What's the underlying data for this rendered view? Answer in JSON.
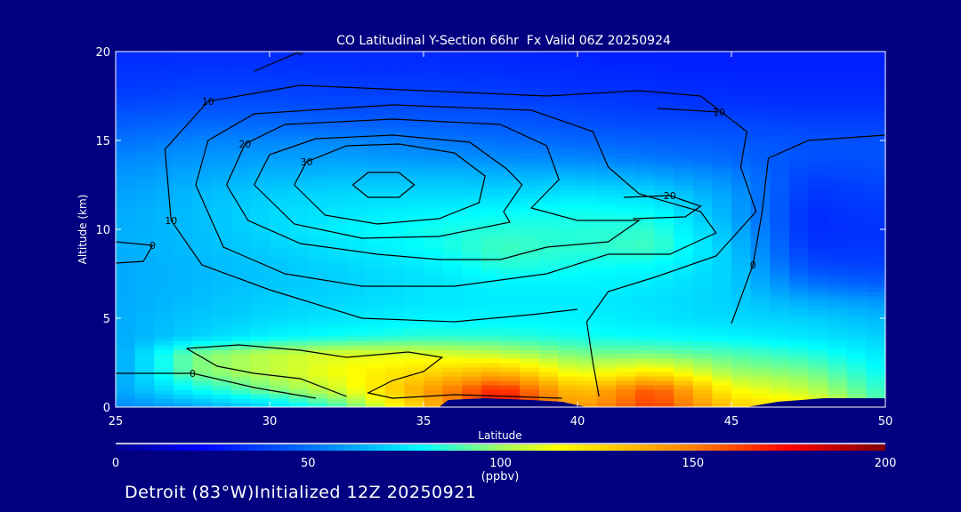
{
  "chart_data": {
    "type": "heatmap",
    "title": "CO Latitudinal Y-Section 66hr  Fx Valid 06Z 20250924",
    "xlabel": "Latitude",
    "ylabel": "Altitude (km)",
    "xlim": [
      25,
      50
    ],
    "ylim": [
      0,
      20
    ],
    "xticks": [
      "25",
      "30",
      "35",
      "40",
      "45",
      "50"
    ],
    "yticks": [
      "0",
      "5",
      "10",
      "15",
      "20"
    ],
    "colorbar": {
      "min": 0,
      "max": 200,
      "ticks": [
        "0",
        "50",
        "100",
        "150",
        "200"
      ],
      "units": "(ppbv)"
    },
    "lat": [
      25,
      27.5,
      30,
      32.5,
      35,
      37.5,
      40,
      42.5,
      45,
      47.5,
      50
    ],
    "alt": [
      0,
      1,
      2,
      3,
      4,
      5,
      6,
      7,
      8,
      9,
      10,
      11,
      12,
      13,
      14,
      15,
      16,
      17,
      18,
      19,
      20
    ],
    "values": [
      [
        55,
        60,
        70,
        90,
        130,
        175,
        140,
        165,
        130,
        120,
        90
      ],
      [
        60,
        80,
        95,
        110,
        140,
        170,
        130,
        160,
        115,
        105,
        85
      ],
      [
        60,
        95,
        105,
        115,
        125,
        135,
        110,
        120,
        100,
        95,
        80
      ],
      [
        60,
        95,
        105,
        110,
        110,
        105,
        95,
        95,
        90,
        85,
        75
      ],
      [
        62,
        70,
        78,
        82,
        85,
        85,
        82,
        80,
        78,
        75,
        70
      ],
      [
        62,
        68,
        72,
        75,
        78,
        78,
        78,
        75,
        72,
        70,
        65
      ],
      [
        62,
        66,
        70,
        72,
        75,
        76,
        76,
        74,
        70,
        62,
        58
      ],
      [
        62,
        65,
        68,
        70,
        74,
        78,
        78,
        76,
        70,
        50,
        45
      ],
      [
        62,
        65,
        68,
        72,
        76,
        85,
        82,
        80,
        70,
        40,
        38
      ],
      [
        63,
        66,
        70,
        75,
        80,
        88,
        85,
        88,
        68,
        35,
        35
      ],
      [
        63,
        66,
        72,
        78,
        82,
        85,
        84,
        86,
        65,
        33,
        35
      ],
      [
        62,
        66,
        72,
        75,
        78,
        80,
        82,
        80,
        62,
        33,
        36
      ],
      [
        60,
        65,
        70,
        72,
        72,
        72,
        75,
        72,
        60,
        35,
        38
      ],
      [
        58,
        62,
        65,
        66,
        66,
        65,
        65,
        62,
        55,
        38,
        40
      ],
      [
        55,
        58,
        60,
        60,
        58,
        56,
        55,
        52,
        48,
        42,
        42
      ],
      [
        50,
        54,
        55,
        55,
        52,
        50,
        48,
        46,
        44,
        42,
        42
      ],
      [
        45,
        48,
        48,
        46,
        45,
        44,
        42,
        40,
        40,
        38,
        38
      ],
      [
        40,
        42,
        42,
        40,
        40,
        40,
        38,
        36,
        35,
        34,
        34
      ],
      [
        36,
        38,
        38,
        37,
        37,
        36,
        34,
        33,
        32,
        32,
        32
      ],
      [
        34,
        35,
        35,
        34,
        34,
        33,
        32,
        31,
        30,
        30,
        30
      ],
      [
        32,
        33,
        33,
        32,
        32,
        31,
        30,
        30,
        29,
        29,
        29
      ]
    ],
    "contours": [
      {
        "level": "30",
        "label": "",
        "points": [
          [
            32.7,
            12.5
          ],
          [
            33.2,
            13.2
          ],
          [
            34.2,
            13.2
          ],
          [
            34.7,
            12.5
          ],
          [
            34.2,
            11.8
          ],
          [
            33.2,
            11.8
          ],
          [
            32.7,
            12.5
          ]
        ]
      },
      {
        "level": "30",
        "label": "30",
        "points": [
          [
            30.8,
            12.5
          ],
          [
            31.2,
            13.8
          ],
          [
            32.5,
            14.7
          ],
          [
            34.2,
            14.8
          ],
          [
            36,
            14.3
          ],
          [
            37,
            13
          ],
          [
            36.8,
            11.5
          ],
          [
            35.5,
            10.6
          ],
          [
            33.5,
            10.3
          ],
          [
            31.8,
            10.8
          ],
          [
            30.8,
            12.5
          ]
        ]
      },
      {
        "level": "25",
        "label": "",
        "points": [
          [
            29.5,
            12.5
          ],
          [
            30,
            14.2
          ],
          [
            31.5,
            15.1
          ],
          [
            34,
            15.3
          ],
          [
            36.5,
            14.9
          ],
          [
            37.7,
            13.4
          ],
          [
            38.2,
            12.5
          ],
          [
            37.6,
            11
          ],
          [
            37.8,
            10.4
          ],
          [
            35.5,
            9.6
          ],
          [
            33,
            9.5
          ],
          [
            30.8,
            10.3
          ],
          [
            29.5,
            12.5
          ]
        ]
      },
      {
        "level": "20",
        "label": "20",
        "points": [
          [
            28.6,
            12.5
          ],
          [
            29.2,
            14.8
          ],
          [
            30.5,
            15.9
          ],
          [
            34,
            16.2
          ],
          [
            37.5,
            15.9
          ],
          [
            39,
            14.7
          ],
          [
            39.4,
            12.8
          ],
          [
            38.5,
            11.2
          ],
          [
            40,
            10.5
          ],
          [
            42,
            10.5
          ],
          [
            41,
            9.3
          ],
          [
            39,
            9
          ],
          [
            37.5,
            8.3
          ],
          [
            35.5,
            8.3
          ],
          [
            33.5,
            8.6
          ],
          [
            31,
            9.2
          ],
          [
            29.3,
            10.5
          ],
          [
            28.6,
            12.5
          ]
        ]
      },
      {
        "level": "15",
        "label": "",
        "points": [
          [
            27.6,
            12.5
          ],
          [
            28,
            15
          ],
          [
            29.5,
            16.5
          ],
          [
            34,
            17
          ],
          [
            38.5,
            16.7
          ],
          [
            40.5,
            15.5
          ],
          [
            41,
            13.5
          ],
          [
            42,
            12
          ],
          [
            44,
            11
          ],
          [
            44.5,
            9.8
          ],
          [
            43,
            8.6
          ],
          [
            41,
            8.6
          ],
          [
            39,
            7.5
          ],
          [
            36,
            6.8
          ],
          [
            33,
            6.8
          ],
          [
            30.5,
            7.5
          ],
          [
            28.5,
            9
          ],
          [
            27.6,
            12.5
          ]
        ]
      },
      {
        "level": "10",
        "label": "10",
        "points": [
          [
            26.6,
            14.5
          ],
          [
            28,
            17.2
          ],
          [
            31,
            18.1
          ],
          [
            35,
            17.8
          ],
          [
            39,
            17.5
          ],
          [
            42,
            17.8
          ],
          [
            44,
            17.5
          ],
          [
            45.5,
            15.5
          ],
          [
            45.3,
            13.5
          ],
          [
            45.8,
            11
          ],
          [
            44.5,
            8.5
          ],
          [
            42.5,
            7.3
          ],
          [
            41,
            6.5
          ],
          [
            40.3,
            4.8
          ],
          [
            40.5,
            2.5
          ],
          [
            40.7,
            0.6
          ]
        ]
      },
      {
        "level": "10",
        "label": "10",
        "points": [
          [
            26.6,
            14.5
          ],
          [
            26.8,
            10.5
          ],
          [
            27.8,
            8
          ],
          [
            30,
            6.6
          ],
          [
            33,
            5
          ],
          [
            36,
            4.8
          ],
          [
            38.5,
            5.2
          ],
          [
            40,
            5.5
          ]
        ]
      },
      {
        "level": "10",
        "label": "10",
        "points": [
          [
            42.6,
            16.8
          ],
          [
            44.6,
            16.6
          ]
        ]
      },
      {
        "level": "20",
        "label": "20",
        "points": [
          [
            41.5,
            11.8
          ],
          [
            43,
            11.9
          ],
          [
            44,
            11.3
          ],
          [
            43.5,
            10.7
          ],
          [
            41.8,
            10.6
          ]
        ]
      },
      {
        "level": "0",
        "label": "0",
        "points": [
          [
            25,
            1.9
          ],
          [
            27.5,
            1.9
          ],
          [
            29.5,
            1.1
          ],
          [
            31.5,
            0.5
          ]
        ]
      },
      {
        "level": "0",
        "label": "0",
        "points": [
          [
            29.5,
            18.9
          ],
          [
            31,
            20
          ]
        ]
      },
      {
        "level": "0",
        "label": "0",
        "points": [
          [
            25,
            9.3
          ],
          [
            26.2,
            9.1
          ],
          [
            25.9,
            8.2
          ],
          [
            25,
            8.1
          ]
        ]
      },
      {
        "level": "0",
        "label": "0",
        "points": [
          [
            45,
            4.7
          ],
          [
            45.7,
            8
          ],
          [
            46,
            11
          ],
          [
            46.2,
            14
          ],
          [
            47.5,
            15
          ],
          [
            50,
            15.3
          ]
        ]
      },
      {
        "level": "10",
        "label": "",
        "points": [
          [
            27.3,
            3.3
          ],
          [
            29,
            3.5
          ],
          [
            31,
            3.2
          ],
          [
            32.5,
            2.8
          ],
          [
            34.5,
            3.1
          ],
          [
            35.6,
            2.8
          ],
          [
            35,
            2
          ],
          [
            34,
            1.5
          ],
          [
            33.2,
            0.8
          ],
          [
            34,
            0.5
          ],
          [
            36,
            0.7
          ],
          [
            39.5,
            0.5
          ]
        ]
      },
      {
        "level": "10",
        "label": "",
        "points": [
          [
            27.3,
            3.3
          ],
          [
            28.3,
            2.3
          ],
          [
            29.5,
            1.9
          ],
          [
            31,
            1.6
          ],
          [
            32.5,
            0.6
          ]
        ]
      }
    ],
    "terrain": [
      [
        35.5,
        0
      ],
      [
        35.8,
        0.4
      ],
      [
        37,
        0.5
      ],
      [
        38.5,
        0.4
      ],
      [
        39.5,
        0.3
      ],
      [
        40.3,
        0
      ],
      [
        45.5,
        0
      ],
      [
        46.5,
        0.3
      ],
      [
        48,
        0.5
      ],
      [
        50,
        0.5
      ],
      [
        50,
        0
      ]
    ]
  },
  "footer": {
    "station": "Detroit (83°W)Initialized 12Z 20250921"
  },
  "colors": {
    "background": "#000080",
    "axes": "#ffffff",
    "contour": "#000000"
  }
}
